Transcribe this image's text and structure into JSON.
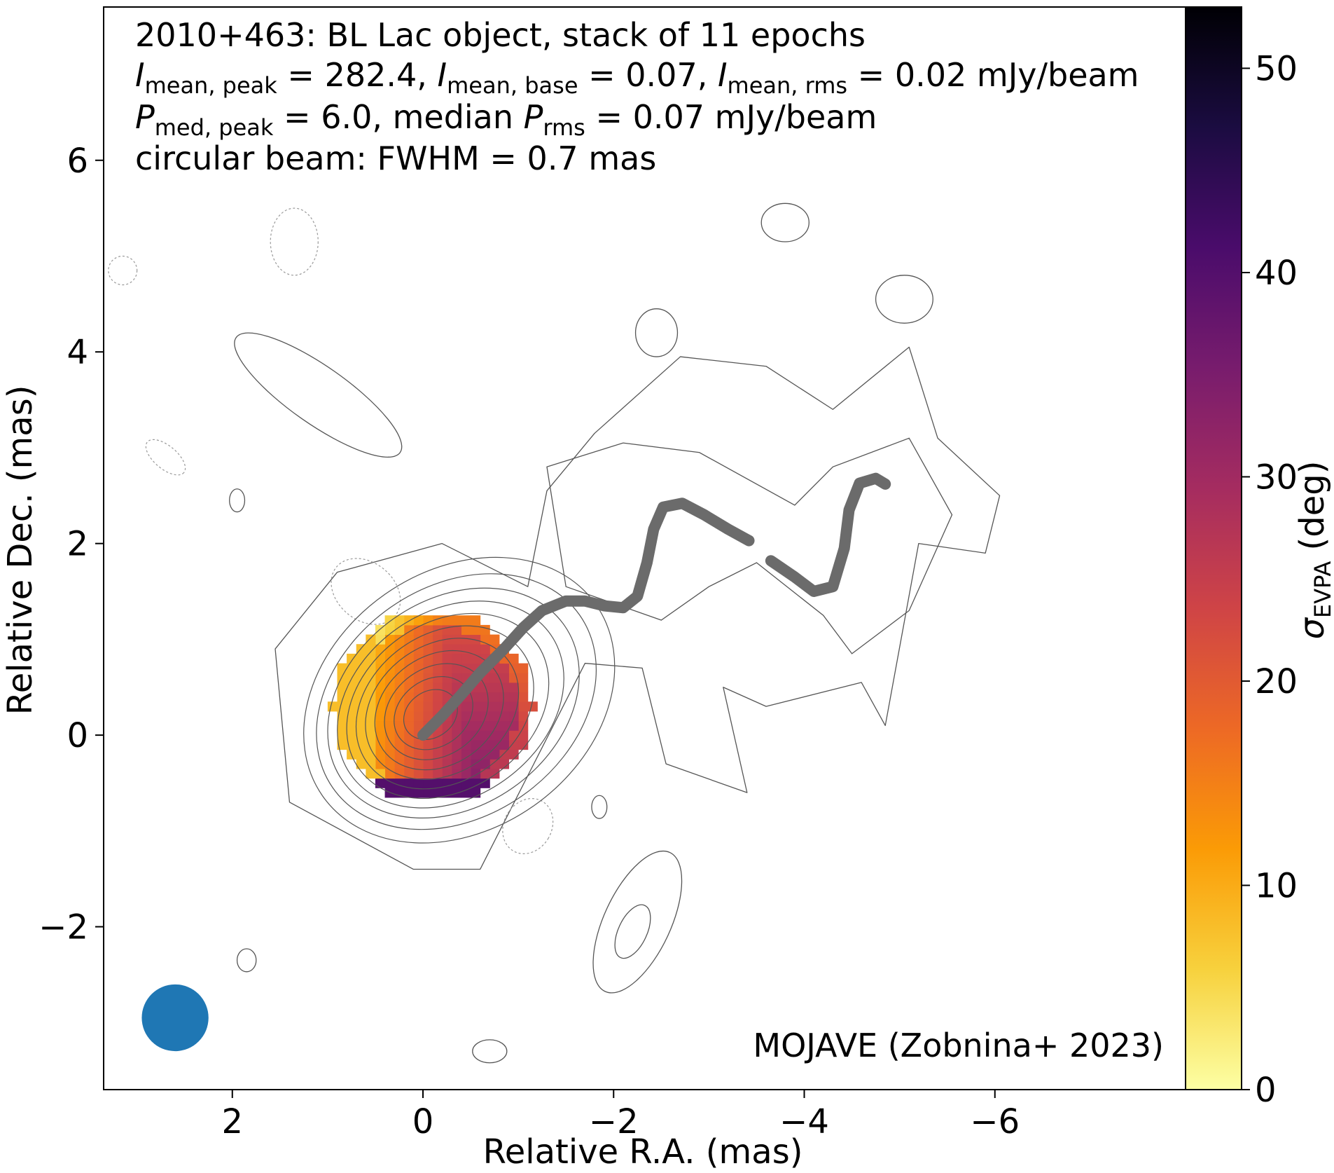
{
  "info": {
    "line1": "2010+463: BL Lac object, stack of 11 epochs",
    "line2": {
      "i1": "I",
      "i1_sub": "mean, peak",
      "i1_val": " = 282.4, ",
      "i2": "I",
      "i2_sub": "mean, base",
      "i2_val": " = 0.07, ",
      "i3": "I",
      "i3_sub": "mean, rms",
      "i3_val": " = 0.02 mJy/beam"
    },
    "line3": {
      "p1": "P",
      "p1_sub": "med, peak",
      "p1_val": " = 6.0, median ",
      "p2": "P",
      "p2_sub": "rms",
      "p2_val": " = 0.07 mJy/beam"
    },
    "line4": "circular beam: FWHM = 0.7 mas"
  },
  "credit": "MOJAVE (Zobnina+ 2023)",
  "colorbar": {
    "label_symbol": "σ",
    "label_sub": "EVPA",
    "label_unit": " (deg)",
    "ticks": [
      "0",
      "10",
      "20",
      "30",
      "40",
      "50"
    ],
    "range": [
      0,
      53
    ],
    "colormap": "inferno_r",
    "stops": [
      "#fcffa4",
      "#f7d13d",
      "#fb9b06",
      "#ed6925",
      "#cf4446",
      "#a52c60",
      "#781c6d",
      "#4a0c6b",
      "#1b0c41",
      "#000004"
    ]
  },
  "chart_data": {
    "type": "heatmap",
    "xlabel": "Relative R.A. (mas)",
    "ylabel": "Relative Dec. (mas)",
    "xlim": [
      3.35,
      -8
    ],
    "ylim": [
      -3.7,
      7.6
    ],
    "xticks": [
      2,
      0,
      -2,
      -4,
      -6
    ],
    "xtick_labels": [
      "2",
      "0",
      "−2",
      "−4",
      "−6"
    ],
    "yticks": [
      -2,
      0,
      2,
      4,
      6
    ],
    "ytick_labels": [
      "−2",
      "0",
      "2",
      "4",
      "6"
    ],
    "beam": {
      "x": 2.6,
      "y": -2.95,
      "fwhm": 0.7,
      "color": "#1f77b4"
    },
    "ridgeline_color": "#6b6b6b",
    "contour_color": "#555555",
    "ridgeline": [
      [
        0.0,
        0.0
      ],
      [
        -0.2,
        0.2
      ],
      [
        -0.4,
        0.42
      ],
      [
        -0.6,
        0.65
      ],
      [
        -0.85,
        0.9
      ],
      [
        -1.05,
        1.12
      ],
      [
        -1.25,
        1.3
      ],
      [
        -1.5,
        1.4
      ],
      [
        -1.7,
        1.4
      ],
      [
        -1.9,
        1.35
      ],
      [
        -2.1,
        1.33
      ],
      [
        -2.25,
        1.45
      ],
      [
        -2.35,
        1.8
      ],
      [
        -2.42,
        2.15
      ],
      [
        -2.52,
        2.38
      ],
      [
        -2.72,
        2.42
      ],
      [
        -2.95,
        2.3
      ],
      [
        -3.2,
        2.15
      ],
      [
        -3.42,
        2.03
      ],
      [
        null,
        null
      ],
      [
        -3.65,
        1.82
      ],
      [
        -3.9,
        1.65
      ],
      [
        -4.1,
        1.5
      ],
      [
        -4.3,
        1.55
      ],
      [
        -4.42,
        1.95
      ],
      [
        -4.47,
        2.35
      ],
      [
        -4.58,
        2.63
      ],
      [
        -4.75,
        2.68
      ],
      [
        -4.85,
        2.62
      ]
    ],
    "evpa_scatter": {
      "center": [
        -0.05,
        0.25
      ],
      "radius_x": 1.05,
      "radius_y": 1.0,
      "values_core": 28,
      "values_edge": 8
    }
  }
}
